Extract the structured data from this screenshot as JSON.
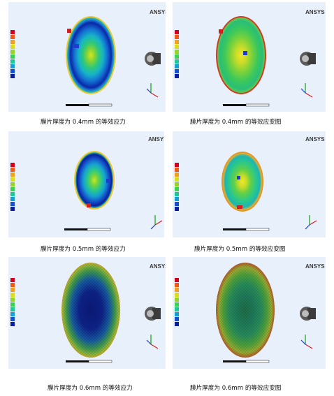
{
  "brand": "ANSYS",
  "panels": [
    {
      "caption": "膜片厚度为 0.4mm 的等效应力"
    },
    {
      "caption": "膜片厚度为 0.4mm 的等效应变图"
    },
    {
      "caption": "膜片厚度为 0.5mm 的等效应力"
    },
    {
      "caption": "膜片厚度为 0.5mm 的等效应变图"
    },
    {
      "caption": "膜片厚度为 0.6mm 的等效应力"
    },
    {
      "caption": "膜片厚度为 0.6mm 的等效应变图"
    }
  ],
  "colors": {
    "legend": [
      "#d2001e",
      "#f05a14",
      "#f0a01e",
      "#dcdc1e",
      "#96d228",
      "#3cd250",
      "#1ec896",
      "#14a0d2",
      "#1450d2",
      "#0a1ea0"
    ]
  }
}
